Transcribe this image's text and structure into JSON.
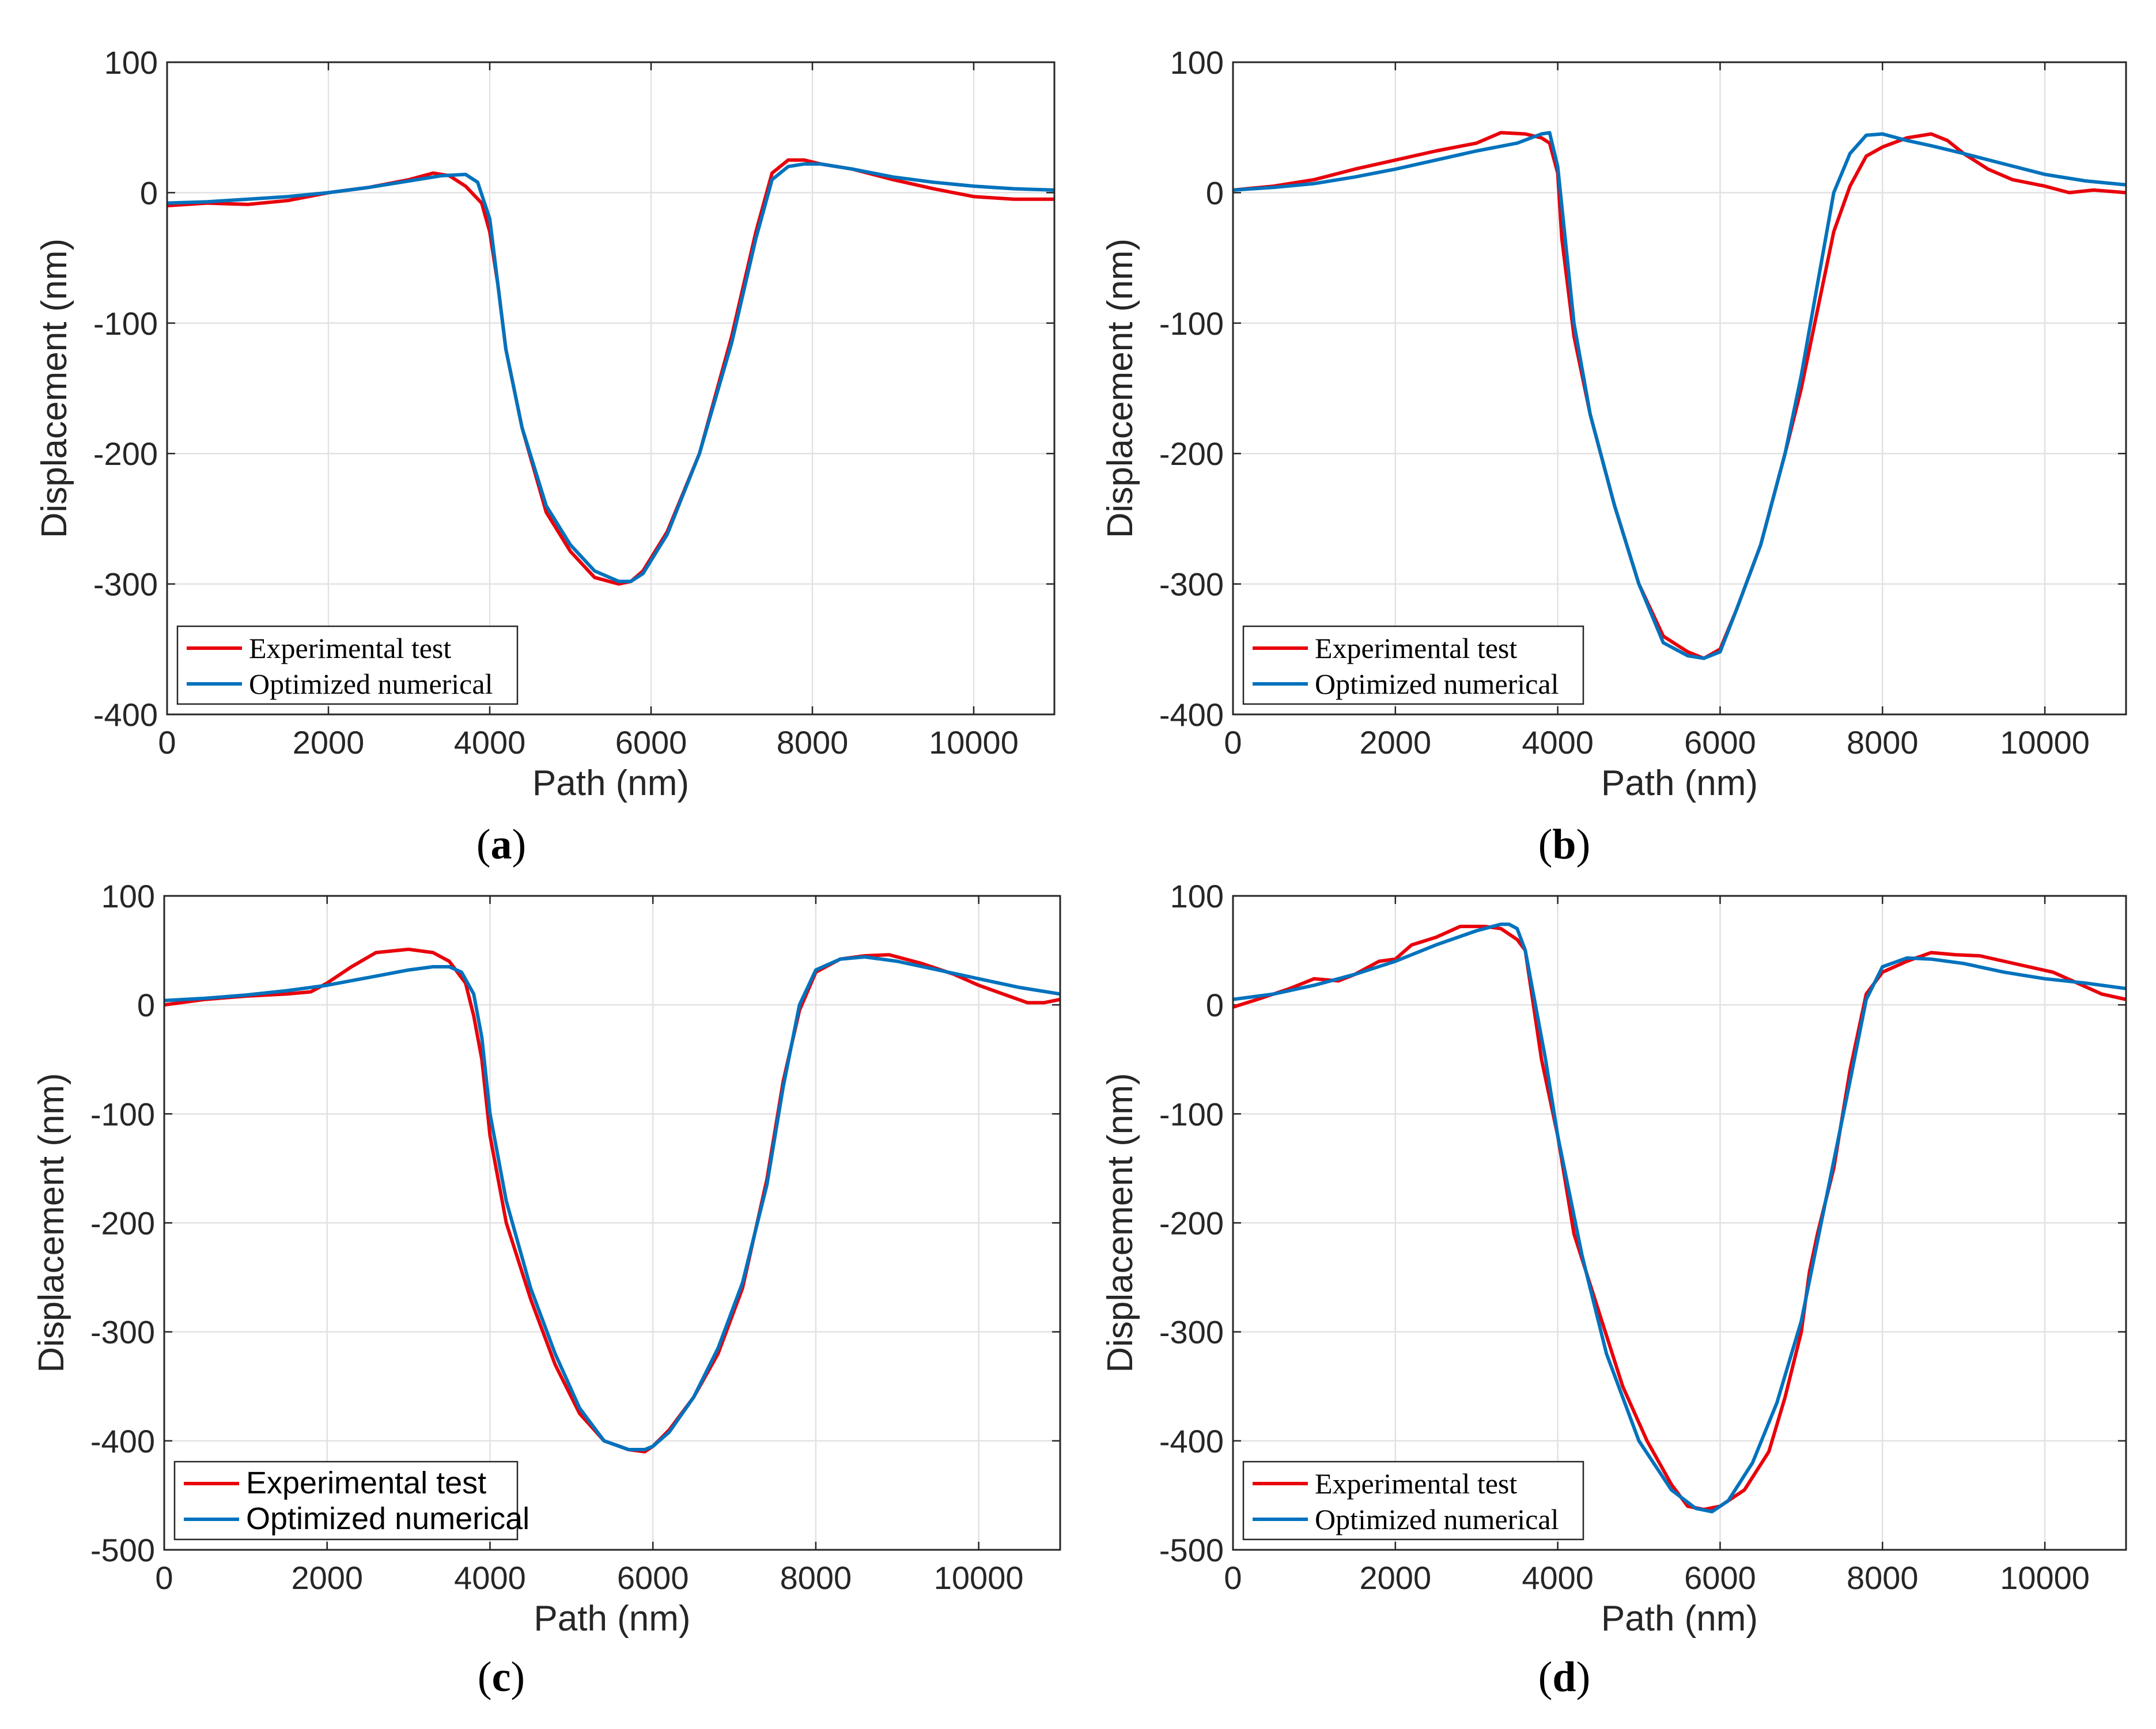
{
  "figure": {
    "series_colors": {
      "experimental": "#e8000b",
      "numerical": "#0072bd"
    },
    "axis_color": "#262626",
    "grid_color": "#e2e2e2"
  },
  "chart_data": [
    {
      "id": "a",
      "type": "line",
      "caption_letter": "a",
      "xlabel": "Path (nm)",
      "ylabel": "Displacement (nm)",
      "xlim": [
        0,
        11000
      ],
      "ylim": [
        -400,
        100
      ],
      "xticks": [
        0,
        2000,
        4000,
        6000,
        8000,
        10000
      ],
      "yticks": [
        -400,
        -300,
        -200,
        -100,
        0,
        100
      ],
      "grid": true,
      "legend_font": "serif",
      "legend_placement": "bottom-left",
      "series": [
        {
          "name": "Experimental test",
          "color": "#e8000b",
          "x": [
            0,
            500,
            1000,
            1500,
            2000,
            2500,
            3000,
            3300,
            3500,
            3700,
            3900,
            4000,
            4100,
            4200,
            4400,
            4700,
            5000,
            5300,
            5600,
            5750,
            5900,
            6200,
            6600,
            7000,
            7300,
            7500,
            7700,
            7900,
            8100,
            8500,
            9000,
            9500,
            10000,
            10500,
            11000
          ],
          "y": [
            -10,
            -8,
            -9,
            -6,
            0,
            4,
            10,
            15,
            13,
            5,
            -8,
            -30,
            -70,
            -120,
            -180,
            -245,
            -275,
            -295,
            -300,
            -298,
            -290,
            -260,
            -200,
            -110,
            -30,
            15,
            25,
            25,
            22,
            18,
            10,
            3,
            -3,
            -5,
            -5
          ]
        },
        {
          "name": "Optimized numerical",
          "color": "#0072bd",
          "x": [
            0,
            500,
            1000,
            1500,
            2000,
            2500,
            3000,
            3400,
            3700,
            3850,
            4000,
            4100,
            4200,
            4400,
            4700,
            5000,
            5300,
            5600,
            5750,
            5900,
            6200,
            6600,
            7000,
            7300,
            7500,
            7700,
            7900,
            8100,
            8500,
            9000,
            9500,
            10000,
            10500,
            11000
          ],
          "y": [
            -8,
            -7,
            -5,
            -3,
            0,
            4,
            9,
            13,
            14,
            8,
            -20,
            -70,
            -120,
            -180,
            -240,
            -270,
            -290,
            -298,
            -298,
            -292,
            -262,
            -200,
            -115,
            -35,
            10,
            20,
            22,
            22,
            18,
            12,
            8,
            5,
            3,
            2
          ]
        }
      ]
    },
    {
      "id": "b",
      "type": "line",
      "caption_letter": "b",
      "xlabel": "Path (nm)",
      "ylabel": "Displacement (nm)",
      "xlim": [
        0,
        11000
      ],
      "ylim": [
        -400,
        100
      ],
      "xticks": [
        0,
        2000,
        4000,
        6000,
        8000,
        10000
      ],
      "yticks": [
        -400,
        -300,
        -200,
        -100,
        0,
        100
      ],
      "grid": true,
      "legend_font": "serif",
      "legend_placement": "bottom-left",
      "series": [
        {
          "name": "Experimental test",
          "color": "#e8000b",
          "x": [
            0,
            500,
            1000,
            1500,
            2000,
            2500,
            3000,
            3300,
            3600,
            3800,
            3900,
            4000,
            4050,
            4100,
            4200,
            4400,
            4700,
            5000,
            5300,
            5600,
            5800,
            6000,
            6200,
            6500,
            6800,
            7000,
            7200,
            7400,
            7600,
            7800,
            8000,
            8300,
            8600,
            8800,
            9000,
            9300,
            9600,
            10000,
            10300,
            10600,
            11000
          ],
          "y": [
            2,
            5,
            10,
            18,
            25,
            32,
            38,
            46,
            45,
            42,
            38,
            15,
            -35,
            -60,
            -110,
            -170,
            -240,
            -300,
            -340,
            -352,
            -357,
            -350,
            -320,
            -270,
            -200,
            -150,
            -90,
            -30,
            5,
            28,
            35,
            42,
            45,
            40,
            30,
            18,
            10,
            5,
            0,
            2,
            0
          ]
        },
        {
          "name": "Optimized numerical",
          "color": "#0072bd",
          "x": [
            0,
            500,
            1000,
            1500,
            2000,
            2500,
            3000,
            3500,
            3800,
            3900,
            4000,
            4100,
            4200,
            4400,
            4700,
            5000,
            5300,
            5600,
            5800,
            6000,
            6200,
            6500,
            6800,
            7000,
            7200,
            7400,
            7600,
            7800,
            8000,
            8300,
            8600,
            9000,
            9500,
            10000,
            10500,
            11000
          ],
          "y": [
            2,
            4,
            7,
            12,
            18,
            25,
            32,
            38,
            45,
            46,
            20,
            -40,
            -100,
            -170,
            -240,
            -300,
            -345,
            -355,
            -357,
            -352,
            -320,
            -270,
            -200,
            -140,
            -70,
            0,
            30,
            44,
            45,
            40,
            36,
            30,
            22,
            14,
            9,
            6
          ]
        }
      ]
    },
    {
      "id": "c",
      "type": "line",
      "caption_letter": "c",
      "xlabel": "Path (nm)",
      "ylabel": "Displacement (nm)",
      "xlim": [
        0,
        11000
      ],
      "ylim": [
        -500,
        100
      ],
      "xticks": [
        0,
        2000,
        4000,
        6000,
        8000,
        10000
      ],
      "yticks": [
        -500,
        -400,
        -300,
        -200,
        -100,
        0,
        100
      ],
      "grid": true,
      "legend_font": "sans",
      "legend_placement": "bottom-left",
      "series": [
        {
          "name": "Experimental test",
          "color": "#e8000b",
          "x": [
            0,
            500,
            1000,
            1500,
            1800,
            2000,
            2300,
            2600,
            3000,
            3300,
            3500,
            3700,
            3800,
            3900,
            4000,
            4200,
            4500,
            4800,
            5100,
            5400,
            5700,
            5900,
            6000,
            6200,
            6500,
            6800,
            7100,
            7400,
            7600,
            7800,
            8000,
            8300,
            8600,
            8900,
            9300,
            9700,
            10000,
            10300,
            10600,
            10800,
            11000
          ],
          "y": [
            0,
            5,
            8,
            10,
            12,
            20,
            35,
            48,
            51,
            48,
            40,
            20,
            -10,
            -50,
            -120,
            -200,
            -270,
            -330,
            -375,
            -400,
            -408,
            -410,
            -405,
            -390,
            -360,
            -320,
            -260,
            -160,
            -70,
            -5,
            30,
            42,
            45,
            46,
            38,
            28,
            18,
            10,
            2,
            2,
            5
          ]
        },
        {
          "name": "Optimized numerical",
          "color": "#0072bd",
          "x": [
            0,
            500,
            1000,
            1500,
            2000,
            2500,
            3000,
            3300,
            3500,
            3650,
            3800,
            3900,
            4000,
            4200,
            4500,
            4800,
            5100,
            5400,
            5700,
            5900,
            6000,
            6200,
            6500,
            6800,
            7100,
            7400,
            7600,
            7800,
            8000,
            8300,
            8600,
            9000,
            9500,
            10000,
            10500,
            11000
          ],
          "y": [
            4,
            6,
            9,
            13,
            18,
            25,
            32,
            35,
            35,
            30,
            10,
            -30,
            -100,
            -180,
            -260,
            -320,
            -370,
            -400,
            -408,
            -408,
            -405,
            -392,
            -360,
            -315,
            -255,
            -165,
            -75,
            0,
            32,
            42,
            44,
            40,
            32,
            24,
            16,
            10
          ]
        }
      ]
    },
    {
      "id": "d",
      "type": "line",
      "caption_letter": "d",
      "xlabel": "Path (nm)",
      "ylabel": "Displacement (nm)",
      "xlim": [
        0,
        11000
      ],
      "ylim": [
        -500,
        100
      ],
      "xticks": [
        0,
        2000,
        4000,
        6000,
        8000,
        10000
      ],
      "yticks": [
        -500,
        -400,
        -300,
        -200,
        -100,
        0,
        100
      ],
      "grid": true,
      "legend_font": "serif",
      "legend_placement": "bottom-left",
      "series": [
        {
          "name": "Experimental test",
          "color": "#e8000b",
          "x": [
            0,
            300,
            700,
            1000,
            1300,
            1500,
            1800,
            2000,
            2200,
            2500,
            2800,
            3100,
            3300,
            3500,
            3600,
            3700,
            3800,
            4000,
            4200,
            4500,
            4800,
            5100,
            5400,
            5600,
            5800,
            6000,
            6300,
            6600,
            6800,
            7000,
            7100,
            7200,
            7400,
            7600,
            7800,
            8000,
            8300,
            8600,
            8900,
            9200,
            9500,
            9800,
            10100,
            10400,
            10700,
            11000
          ],
          "y": [
            -2,
            5,
            15,
            24,
            22,
            28,
            40,
            42,
            55,
            62,
            72,
            72,
            70,
            60,
            50,
            0,
            -50,
            -120,
            -210,
            -280,
            -350,
            -400,
            -440,
            -460,
            -463,
            -460,
            -445,
            -410,
            -360,
            -300,
            -245,
            -210,
            -150,
            -60,
            10,
            30,
            40,
            48,
            46,
            45,
            40,
            35,
            30,
            20,
            10,
            5
          ]
        },
        {
          "name": "Optimized numerical",
          "color": "#0072bd",
          "x": [
            0,
            500,
            1000,
            1500,
            2000,
            2500,
            3000,
            3300,
            3400,
            3500,
            3600,
            3700,
            3850,
            4000,
            4300,
            4600,
            5000,
            5400,
            5700,
            5900,
            6100,
            6400,
            6700,
            7000,
            7300,
            7600,
            7800,
            8000,
            8300,
            8600,
            9000,
            9500,
            10000,
            10500,
            11000
          ],
          "y": [
            5,
            10,
            18,
            28,
            40,
            55,
            68,
            74,
            74,
            70,
            50,
            10,
            -50,
            -120,
            -230,
            -320,
            -400,
            -445,
            -462,
            -465,
            -455,
            -420,
            -365,
            -290,
            -180,
            -70,
            5,
            35,
            43,
            42,
            38,
            30,
            24,
            20,
            15
          ]
        }
      ]
    }
  ]
}
